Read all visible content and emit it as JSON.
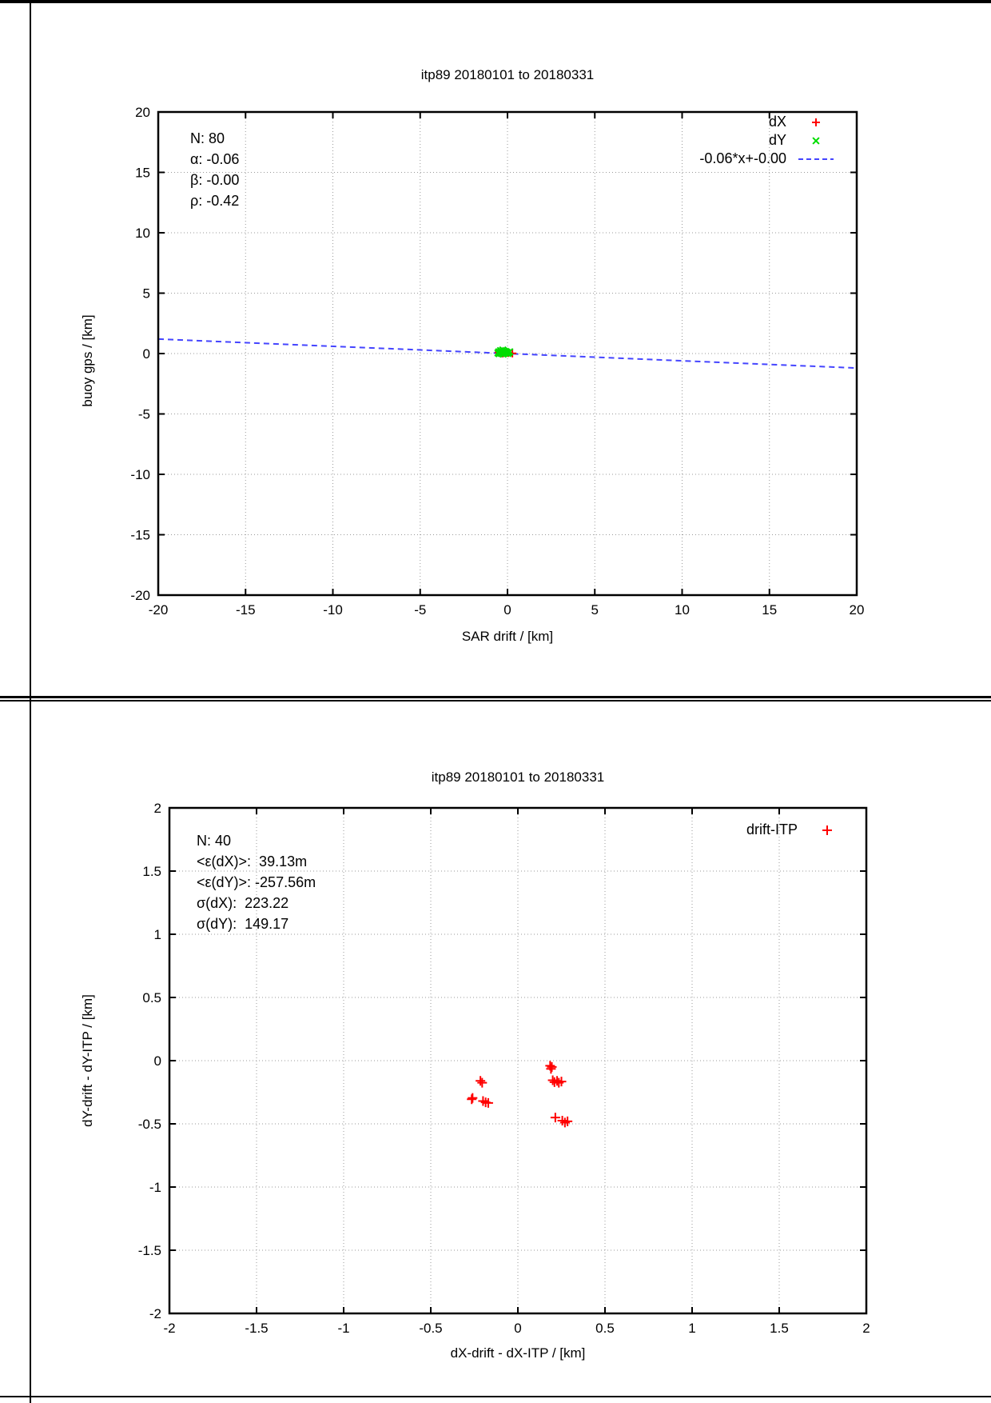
{
  "page": {
    "background": "#ffffff",
    "border_color": "#000000"
  },
  "chart_data": [
    {
      "type": "scatter",
      "title": "itp89 20180101 to 20180331",
      "xlabel": "SAR drift / [km]",
      "ylabel": "buoy gps / [km]",
      "xlim": [
        -20,
        20
      ],
      "ylim": [
        -20,
        20
      ],
      "xticks": [
        -20,
        -15,
        -10,
        -5,
        0,
        5,
        10,
        15,
        20
      ],
      "yticks": [
        -20,
        -15,
        -10,
        -5,
        0,
        5,
        10,
        15,
        20
      ],
      "grid": true,
      "legend_position": "top-right-inside",
      "stats": [
        "N: 80",
        "α: -0.06",
        "β: -0.00",
        "ρ: -0.42"
      ],
      "series": [
        {
          "name": "dX",
          "marker": "plus",
          "color": "#ff0000",
          "points": [
            [
              -0.5,
              0.1
            ],
            [
              -0.45,
              0.08
            ],
            [
              -0.35,
              0.15
            ],
            [
              -0.28,
              0.02
            ],
            [
              -0.2,
              0.1
            ],
            [
              -0.12,
              0.05
            ],
            [
              -0.05,
              0.1
            ],
            [
              0.05,
              0.05
            ],
            [
              0.28,
              0.02
            ]
          ]
        },
        {
          "name": "dY",
          "marker": "cross",
          "color": "#00dd00",
          "points": [
            [
              -0.55,
              0.05
            ],
            [
              -0.5,
              0.15
            ],
            [
              -0.48,
              -0.02
            ],
            [
              -0.42,
              0.1
            ],
            [
              -0.4,
              0.25
            ],
            [
              -0.35,
              0.0
            ],
            [
              -0.33,
              0.18
            ],
            [
              -0.3,
              0.08
            ],
            [
              -0.27,
              0.3
            ],
            [
              -0.25,
              -0.05
            ],
            [
              -0.22,
              0.12
            ],
            [
              -0.2,
              0.22
            ],
            [
              -0.17,
              0.02
            ],
            [
              -0.14,
              0.1
            ],
            [
              -0.1,
              0.18
            ],
            [
              -0.07,
              0.05
            ],
            [
              -0.03,
              0.12
            ],
            [
              0.02,
              0.0
            ],
            [
              0.08,
              0.08
            ],
            [
              0.13,
              0.15
            ]
          ]
        }
      ],
      "fit_line": {
        "label": "-0.06*x+-0.00",
        "slope": -0.06,
        "intercept": 0.0,
        "color": "#4444ff"
      }
    },
    {
      "type": "scatter",
      "title": "itp89 20180101 to 20180331",
      "xlabel": "dX-drift - dX-ITP / [km]",
      "ylabel": "dY-drift - dY-ITP / [km]",
      "xlim": [
        -2,
        2
      ],
      "ylim": [
        -2,
        2
      ],
      "xticks": [
        -2,
        -1.5,
        -1,
        -0.5,
        0,
        0.5,
        1,
        1.5,
        2
      ],
      "yticks": [
        -2,
        -1.5,
        -1,
        -0.5,
        0,
        0.5,
        1,
        1.5,
        2
      ],
      "grid": true,
      "legend_position": "top-right-inside",
      "stats": [
        "N: 40",
        "<ε(dX)>:  39.13m",
        "<ε(dY)>: -257.56m",
        "σ(dX):  223.22",
        "σ(dY):  149.17"
      ],
      "series": [
        {
          "name": "drift-ITP",
          "marker": "plus",
          "color": "#ff0000",
          "points": [
            [
              0.185,
              -0.04
            ],
            [
              0.195,
              -0.05
            ],
            [
              0.19,
              -0.065
            ],
            [
              0.2,
              -0.155
            ],
            [
              0.21,
              -0.17
            ],
            [
              0.225,
              -0.16
            ],
            [
              0.235,
              -0.175
            ],
            [
              0.25,
              -0.165
            ],
            [
              -0.215,
              -0.16
            ],
            [
              -0.205,
              -0.175
            ],
            [
              -0.26,
              -0.295
            ],
            [
              -0.265,
              -0.305
            ],
            [
              -0.2,
              -0.32
            ],
            [
              -0.185,
              -0.33
            ],
            [
              -0.17,
              -0.335
            ],
            [
              0.215,
              -0.45
            ],
            [
              0.255,
              -0.475
            ],
            [
              0.27,
              -0.49
            ],
            [
              0.285,
              -0.48
            ]
          ]
        }
      ]
    }
  ]
}
